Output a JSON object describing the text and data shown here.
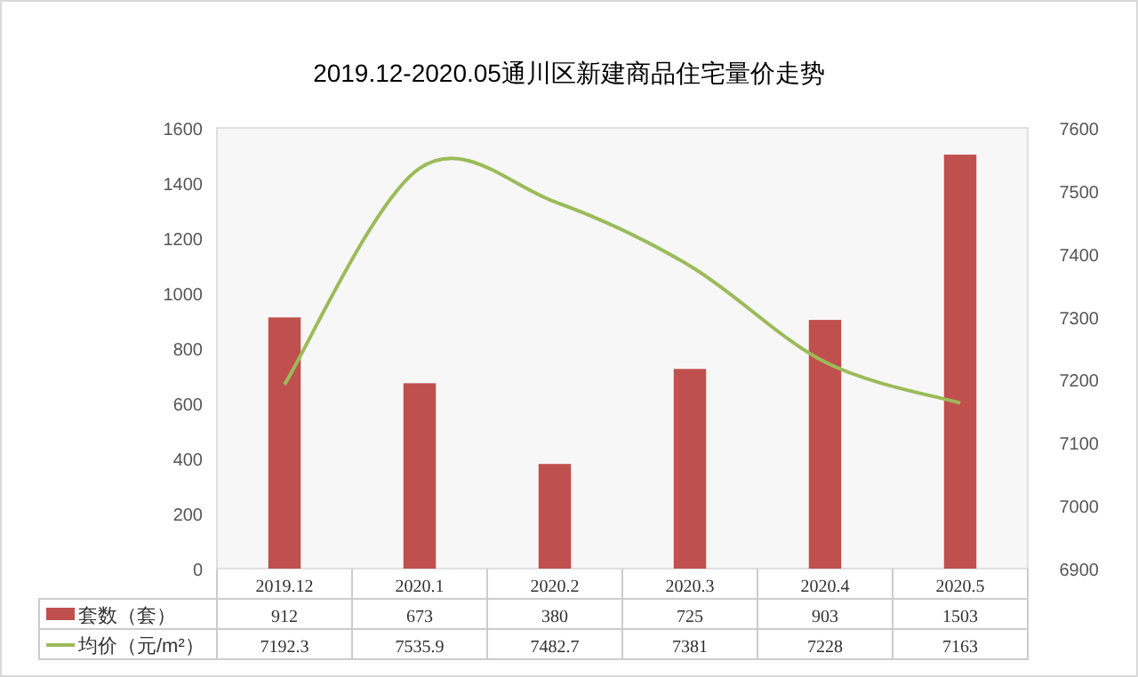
{
  "chart_data": {
    "type": "bar",
    "title": "2019.12-2020.05通川区新建商品住宅量价走势",
    "categories": [
      "2019.12",
      "2020.1",
      "2020.2",
      "2020.3",
      "2020.4",
      "2020.5"
    ],
    "series": [
      {
        "name": "套数（套）",
        "color": "#c0504d",
        "values": [
          912,
          673,
          380,
          725,
          903,
          1503
        ]
      },
      {
        "name": "均价（元/m²）",
        "type": "line",
        "axis": "y2",
        "color": "#9bbb59",
        "values": [
          7192.3,
          7535.9,
          7482.7,
          7381,
          7228,
          7163
        ]
      }
    ],
    "ylim": [
      0,
      1600
    ],
    "yticks": [
      0,
      200,
      400,
      600,
      800,
      1000,
      1200,
      1400,
      1600
    ],
    "y2lim": [
      6900,
      7600
    ],
    "y2ticks": [
      6900,
      7000,
      7100,
      7200,
      7300,
      7400,
      7500,
      7600
    ],
    "data_labels": true,
    "legend": "bottom left",
    "marker": "none",
    "grid": false
  }
}
